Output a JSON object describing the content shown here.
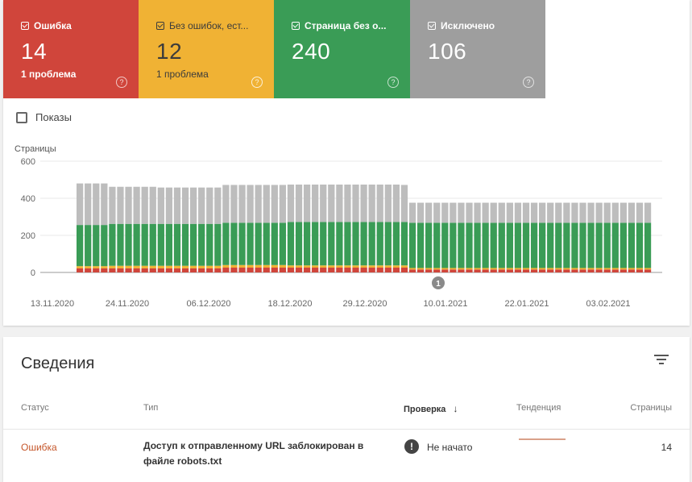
{
  "tiles": [
    {
      "label": "Ошибка",
      "value": "14",
      "sub": "1 проблема",
      "color": "#d0453b"
    },
    {
      "label": "Без ошибок, ест...",
      "value": "12",
      "sub": "1 проблема",
      "color": "#f0b234"
    },
    {
      "label": "Страница без о...",
      "value": "240",
      "sub": "",
      "color": "#3a9c56"
    },
    {
      "label": "Исключено",
      "value": "106",
      "sub": "",
      "color": "#9e9e9e"
    }
  ],
  "shows_label": "Показы",
  "chart_data": {
    "type": "bar",
    "stacked": true,
    "ylabel": "Страницы",
    "ylim": [
      0,
      600
    ],
    "yticks": [
      "600",
      "400",
      "200",
      "0"
    ],
    "xticks": [
      "13.11.2020",
      "24.11.2020",
      "06.12.2020",
      "18.12.2020",
      "29.12.2020",
      "10.01.2021",
      "22.01.2021",
      "03.02.2021"
    ],
    "annotation": "1",
    "series": [
      {
        "name": "Ошибка",
        "color": "#d0453b",
        "values_note": "approx 14-20"
      },
      {
        "name": "Без ошибок, ест...",
        "color": "#f0b234"
      },
      {
        "name": "Страница без о...",
        "color": "#3a9c56"
      },
      {
        "name": "Исключено",
        "color": "#bdbdbd"
      }
    ],
    "segments": [
      {
        "count": 4,
        "red": 22,
        "yellow": 12,
        "green": 222,
        "gray": 224
      },
      {
        "count": 6,
        "red": 22,
        "yellow": 14,
        "green": 226,
        "gray": 200
      },
      {
        "count": 8,
        "red": 22,
        "yellow": 14,
        "green": 226,
        "gray": 196
      },
      {
        "count": 8,
        "red": 26,
        "yellow": 14,
        "green": 228,
        "gray": 204
      },
      {
        "count": 14,
        "red": 26,
        "yellow": 12,
        "green": 234,
        "gray": 202
      },
      {
        "count": 1,
        "red": 26,
        "yellow": 12,
        "green": 234,
        "gray": 200
      },
      {
        "count": 30,
        "red": 16,
        "yellow": 8,
        "green": 244,
        "gray": 108
      }
    ]
  },
  "details": {
    "title": "Сведения",
    "columns": {
      "status": "Статус",
      "type": "Тип",
      "check": "Проверка",
      "trend": "Тенденция",
      "pages": "Страницы"
    },
    "rows": [
      {
        "status": "Ошибка",
        "type": "Доступ к отправленному URL заблокирован в файле robots.txt",
        "check": "Не начато",
        "pages": "14"
      }
    ]
  }
}
